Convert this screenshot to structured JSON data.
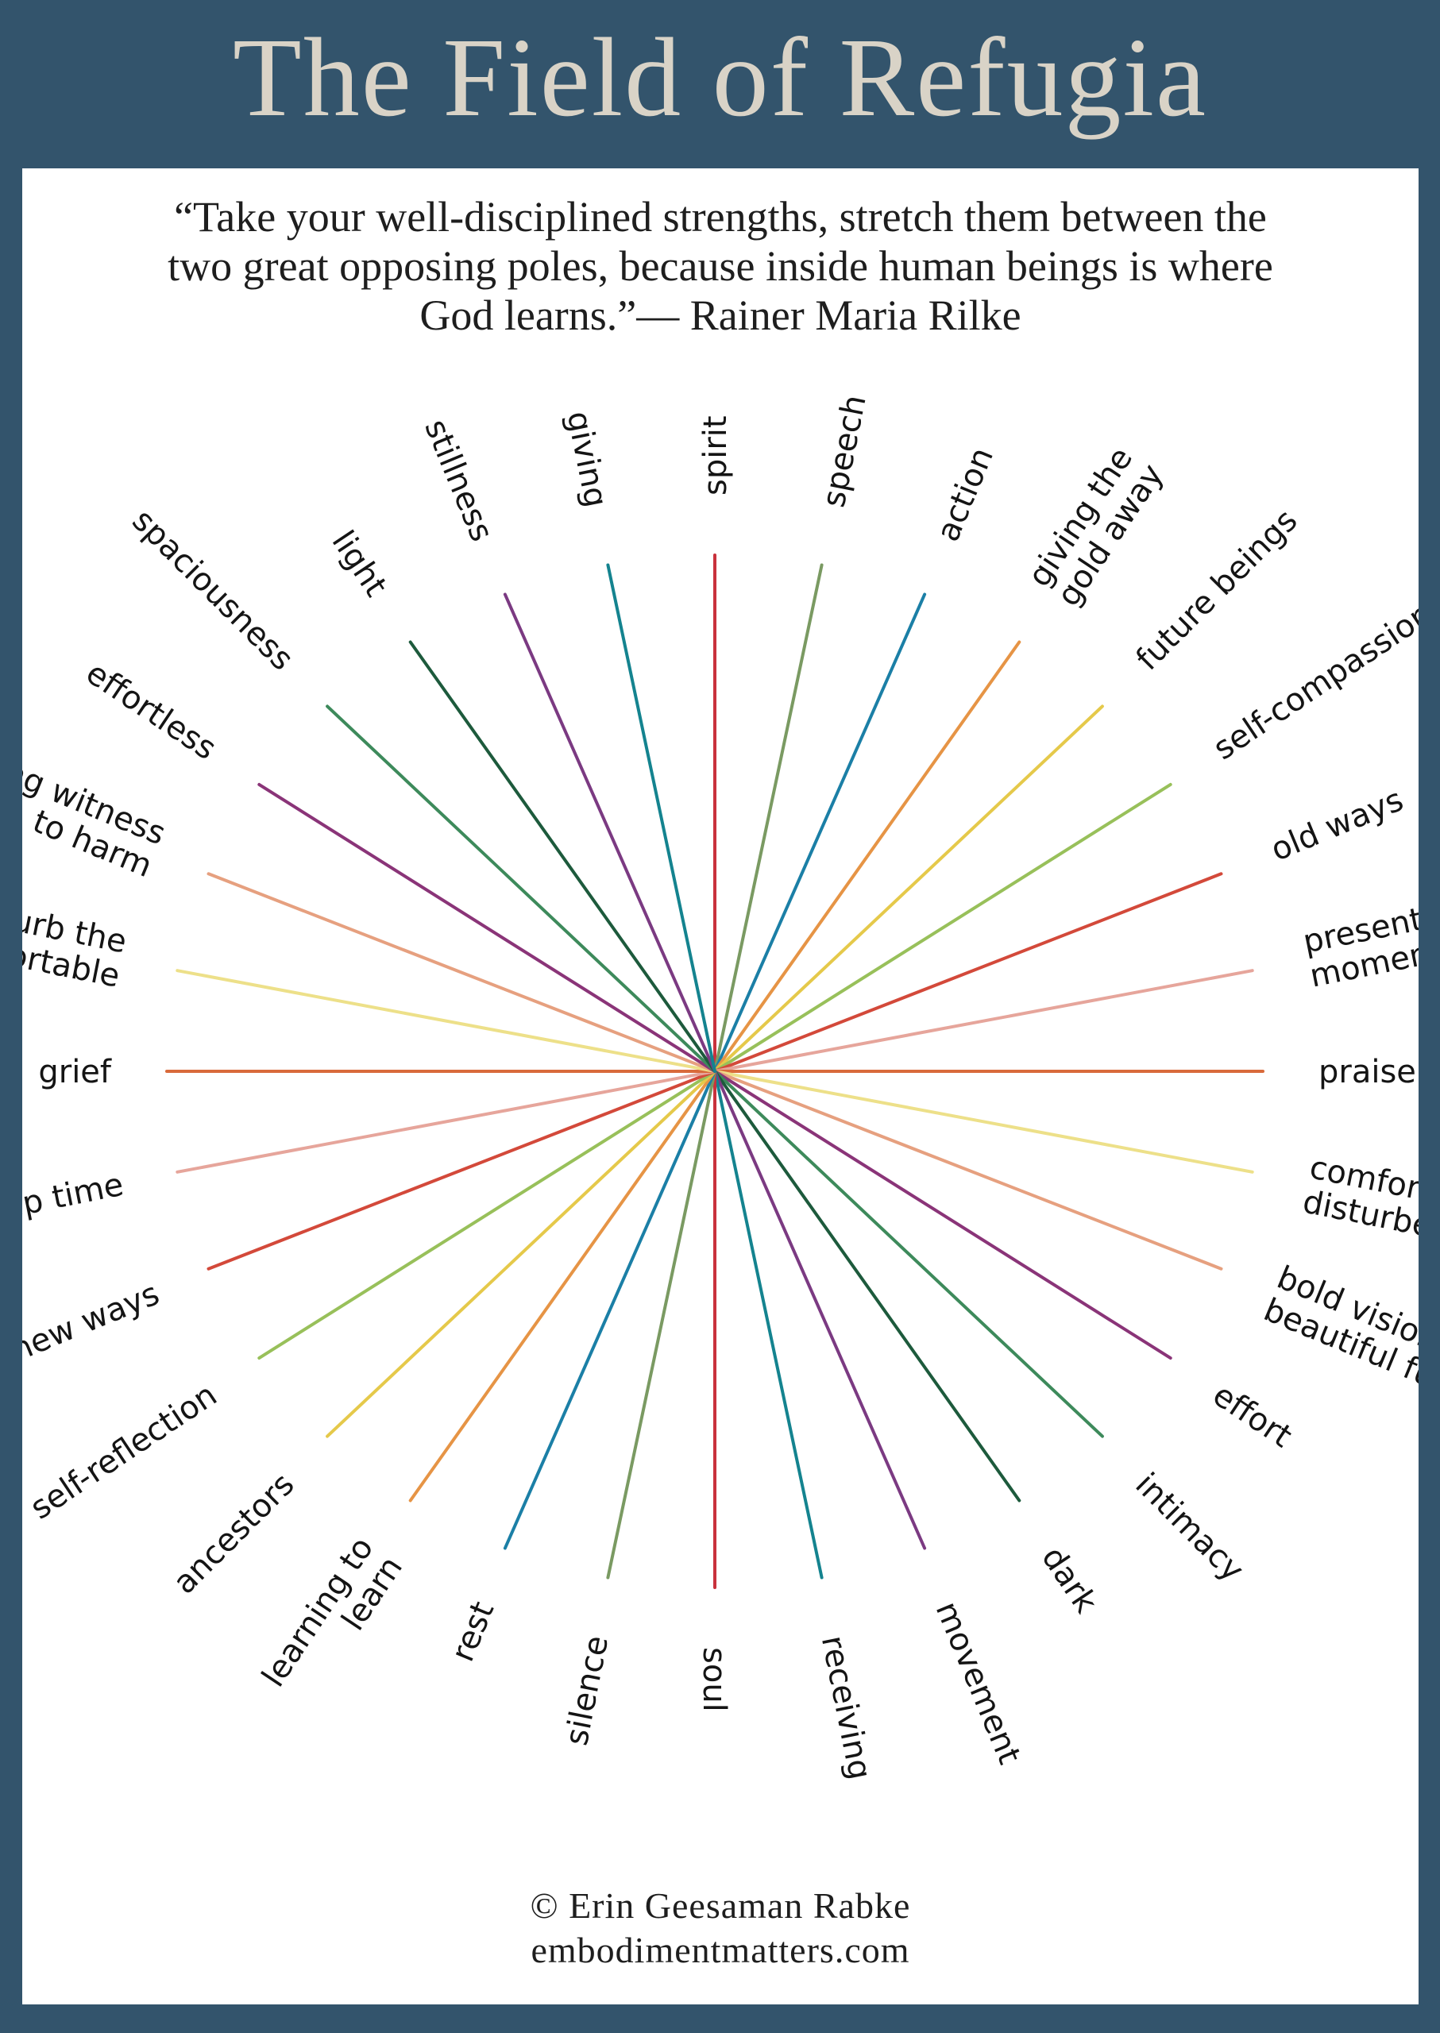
{
  "title": "The Field of Refugia",
  "quote": {
    "line1": "“Take your well-disciplined strengths, stretch them between the",
    "line2": "two great opposing poles, because inside human beings is where",
    "line3": "God learns.”— Rainer Maria Rilke"
  },
  "colors": {
    "background": "#33546c",
    "panel": "#ffffff",
    "title": "#d9d3c7"
  },
  "chart_data": {
    "type": "radial-diagram",
    "rays": [
      {
        "label": [
          "spirit"
        ],
        "color": "#c9323c"
      },
      {
        "label": [
          "speech"
        ],
        "color": "#7a9a62"
      },
      {
        "label": [
          "action"
        ],
        "color": "#1b7fa6"
      },
      {
        "label": [
          "giving the",
          "gold away"
        ],
        "color": "#e69445"
      },
      {
        "label": [
          "future beings"
        ],
        "color": "#e5c94a"
      },
      {
        "label": [
          "self-compassion"
        ],
        "color": "#98c05a"
      },
      {
        "label": [
          "old ways"
        ],
        "color": "#d3493a"
      },
      {
        "label": [
          "present",
          "moment"
        ],
        "color": "#e6a59b"
      },
      {
        "label": [
          "praise"
        ],
        "color": "#d96a3b"
      },
      {
        "label": [
          "comfort the",
          "disturbed"
        ],
        "color": "#ede089"
      },
      {
        "label": [
          "bold visions for a",
          "beautiful future"
        ],
        "color": "#e6a07f"
      },
      {
        "label": [
          "effort"
        ],
        "color": "#8a3478"
      },
      {
        "label": [
          "intimacy"
        ],
        "color": "#3d8a5b"
      },
      {
        "label": [
          "dark"
        ],
        "color": "#1d5a3c"
      },
      {
        "label": [
          "movement"
        ],
        "color": "#7b3a82"
      },
      {
        "label": [
          "receiving"
        ],
        "color": "#14838f"
      },
      {
        "label": [
          "soul"
        ],
        "color": "#c9323c"
      },
      {
        "label": [
          "silence"
        ],
        "color": "#7a9a62"
      },
      {
        "label": [
          "rest"
        ],
        "color": "#1b7fa6"
      },
      {
        "label": [
          "learning to",
          "learn"
        ],
        "color": "#e69445"
      },
      {
        "label": [
          "ancestors"
        ],
        "color": "#e5c94a"
      },
      {
        "label": [
          "self-reflection"
        ],
        "color": "#98c05a"
      },
      {
        "label": [
          "new ways"
        ],
        "color": "#d3493a"
      },
      {
        "label": [
          "deep time"
        ],
        "color": "#e6a59b"
      },
      {
        "label": [
          "grief"
        ],
        "color": "#d96a3b"
      },
      {
        "label": [
          "disturb the",
          "comfortable"
        ],
        "color": "#ede089"
      },
      {
        "label": [
          "bearing witness",
          "to harm"
        ],
        "color": "#e6a07f"
      },
      {
        "label": [
          "effortless"
        ],
        "color": "#8a3478"
      },
      {
        "label": [
          "spaciousness"
        ],
        "color": "#3d8a5b"
      },
      {
        "label": [
          "light"
        ],
        "color": "#1d5a3c"
      },
      {
        "label": [
          "stillness"
        ],
        "color": "#7b3a82"
      },
      {
        "label": [
          "giving"
        ],
        "color": "#14838f"
      }
    ]
  },
  "footer": {
    "copyright": "© Erin Geesaman Rabke",
    "website": "embodimentmatters.com"
  }
}
